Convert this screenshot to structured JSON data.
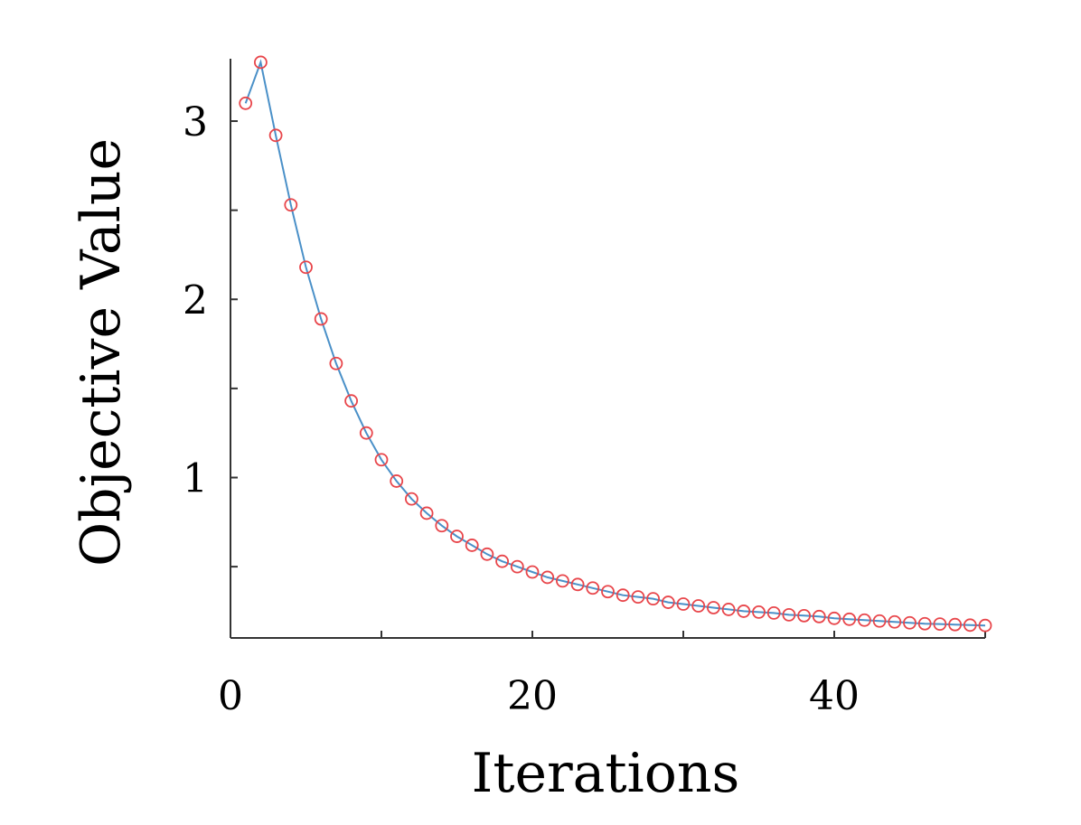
{
  "chart_data": {
    "type": "line",
    "title": "",
    "xlabel": "Iterations",
    "ylabel": "Objective Value",
    "xlim": [
      0,
      50
    ],
    "ylim": [
      0.1,
      3.35
    ],
    "xticks": [
      0,
      10,
      20,
      30,
      40,
      50
    ],
    "xtick_labels": [
      "0",
      "",
      "20",
      "",
      "40",
      ""
    ],
    "yticks": [
      0.5,
      1,
      1.5,
      2,
      2.5,
      3
    ],
    "ytick_labels": [
      "",
      "1",
      "",
      "2",
      "",
      "3"
    ],
    "grid": false,
    "legend": "none",
    "series": [
      {
        "line_color": "#4a90c8",
        "marker": "circle",
        "marker_color": "#e8454a",
        "x": [
          1,
          2,
          3,
          4,
          5,
          6,
          7,
          8,
          9,
          10,
          11,
          12,
          13,
          14,
          15,
          16,
          17,
          18,
          19,
          20,
          21,
          22,
          23,
          24,
          25,
          26,
          27,
          28,
          29,
          30,
          31,
          32,
          33,
          34,
          35,
          36,
          37,
          38,
          39,
          40,
          41,
          42,
          43,
          44,
          45,
          46,
          47,
          48,
          49,
          50
        ],
        "y": [
          3.1,
          3.33,
          2.92,
          2.53,
          2.18,
          1.89,
          1.64,
          1.43,
          1.25,
          1.1,
          0.98,
          0.88,
          0.8,
          0.73,
          0.67,
          0.62,
          0.57,
          0.53,
          0.5,
          0.47,
          0.44,
          0.42,
          0.4,
          0.38,
          0.36,
          0.34,
          0.33,
          0.32,
          0.3,
          0.29,
          0.28,
          0.27,
          0.26,
          0.25,
          0.245,
          0.24,
          0.23,
          0.225,
          0.22,
          0.21,
          0.205,
          0.2,
          0.195,
          0.19,
          0.185,
          0.18,
          0.178,
          0.175,
          0.172,
          0.17
        ]
      }
    ]
  }
}
